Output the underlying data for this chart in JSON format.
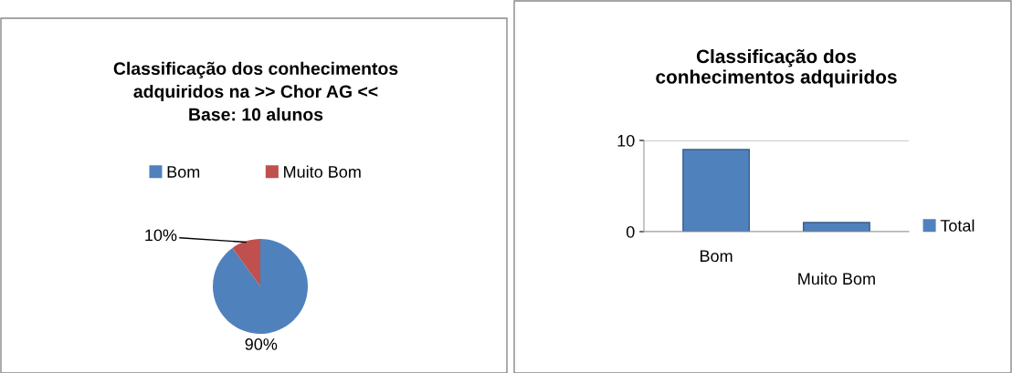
{
  "chart_data": [
    {
      "type": "pie",
      "title": "Classificação dos conhecimentos\nadquiridos na >> Chor AG <<\nBase: 10 alunos",
      "categories": [
        "Bom",
        "Muito Bom"
      ],
      "values": [
        90,
        10
      ],
      "colors": [
        "#4f81bd",
        "#c0504d"
      ],
      "value_labels": [
        "90%",
        "10%"
      ],
      "legend": "top"
    },
    {
      "type": "bar",
      "title": "Classificação dos\nconhecimentos adquiridos",
      "categories": [
        "Bom",
        "Muito Bom"
      ],
      "series": [
        {
          "name": "Total",
          "color": "#4f81bd",
          "values": [
            9,
            1
          ]
        }
      ],
      "ylim": [
        0,
        10
      ],
      "yticks": [
        0,
        10
      ],
      "grid": "y",
      "legend": "right"
    }
  ]
}
